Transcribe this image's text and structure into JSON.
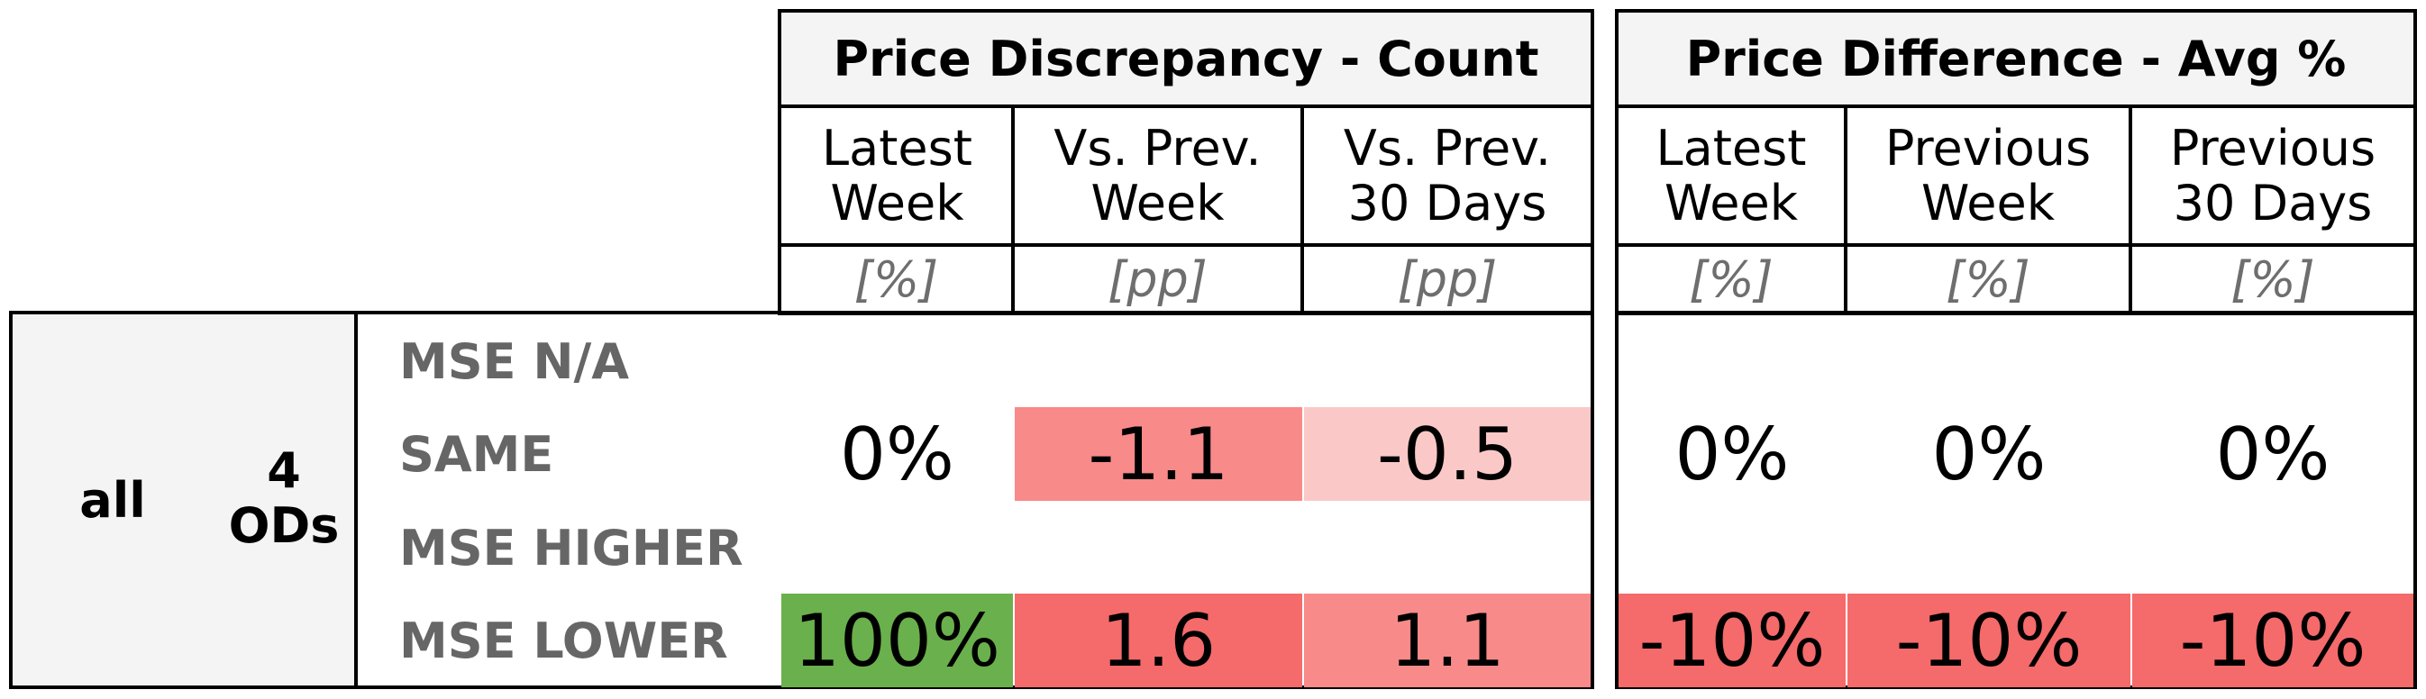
{
  "chart_data": {
    "type": "table",
    "group_left": {
      "all": "all",
      "ods": "4\nODs"
    },
    "panels": [
      {
        "title": "Price Discrepancy - Count",
        "columns": [
          {
            "label": "Latest\nWeek",
            "unit": "[%]"
          },
          {
            "label": "Vs. Prev.\nWeek",
            "unit": "[pp]"
          },
          {
            "label": "Vs. Prev.\n30 Days",
            "unit": "[pp]"
          }
        ]
      },
      {
        "title": "Price Difference - Avg %",
        "columns": [
          {
            "label": "Latest\nWeek",
            "unit": "[%]"
          },
          {
            "label": "Previous\nWeek",
            "unit": "[%]"
          },
          {
            "label": "Previous\n30 Days",
            "unit": "[%]"
          }
        ]
      }
    ],
    "rows": [
      {
        "label": "MSE N/A",
        "cells": [
          "",
          "",
          "",
          "",
          "",
          ""
        ]
      },
      {
        "label": "SAME",
        "cells": [
          "0%",
          "-1.1",
          "-0.5",
          "0%",
          "0%",
          "0%"
        ]
      },
      {
        "label": "MSE HIGHER",
        "cells": [
          "",
          "",
          "",
          "",
          "",
          ""
        ]
      },
      {
        "label": "MSE LOWER",
        "cells": [
          "100%",
          "1.6",
          "1.1",
          "-10%",
          "-10%",
          "-10%"
        ]
      }
    ],
    "cell_colors": [
      [
        "",
        "",
        "",
        "",
        "",
        ""
      ],
      [
        "",
        "#f88a8a",
        "#fbc8c8",
        "",
        "",
        ""
      ],
      [
        "",
        "",
        "",
        "",
        "",
        ""
      ],
      [
        "#6ab04c",
        "#f56a6a",
        "#f88a8a",
        "#f56a6a",
        "#f56a6a",
        "#f56a6a"
      ]
    ]
  }
}
